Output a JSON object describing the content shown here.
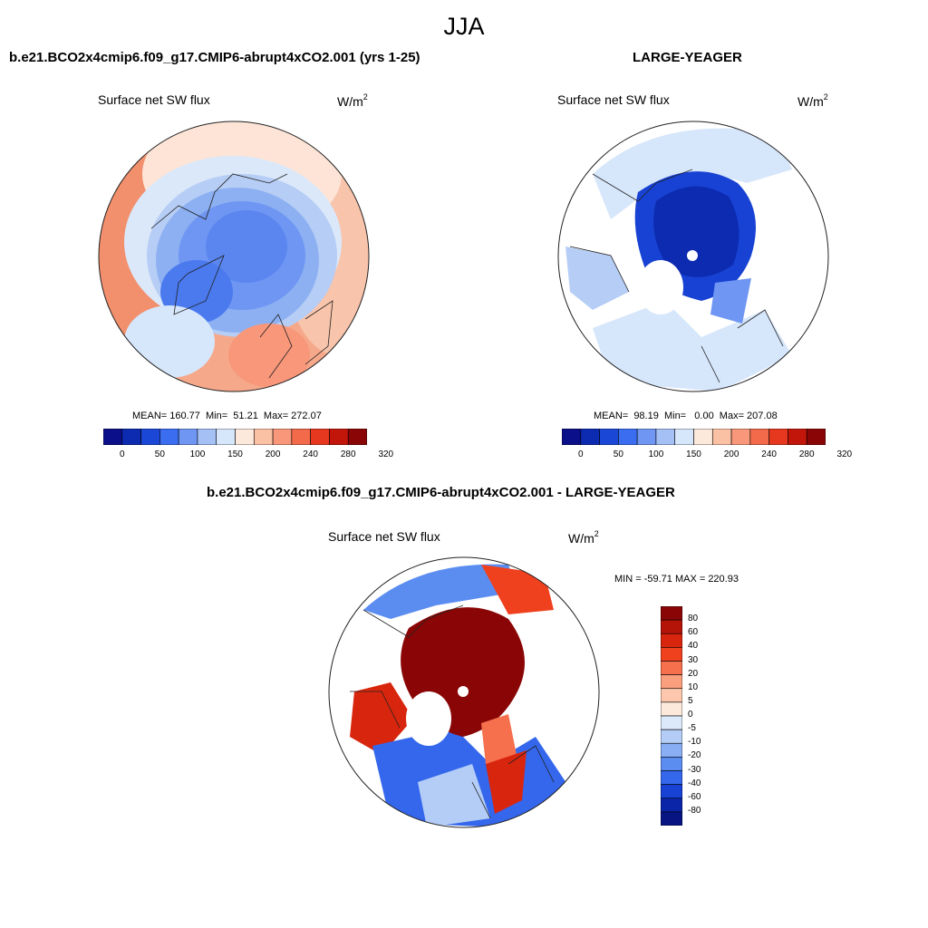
{
  "page_title": "JJA",
  "panels": [
    {
      "title": "b.e21.BCO2x4cmip6.f09_g17.CMIP6-abrupt4xCO2.001 (yrs 1-25)",
      "variable": "Surface net SW flux",
      "units": "W/m",
      "units_sup": "2",
      "stats": "MEAN= 160.77  Min=  51.21  Max= 272.07"
    },
    {
      "title": "LARGE-YEAGER",
      "variable": "Surface net SW flux",
      "units": "W/m",
      "units_sup": "2",
      "stats": "MEAN=  98.19  Min=   0.00  Max= 207.08"
    },
    {
      "title": "b.e21.BCO2x4cmip6.f09_g17.CMIP6-abrupt4xCO2.001 - LARGE-YEAGER",
      "variable": "Surface net SW flux",
      "units": "W/m",
      "units_sup": "2",
      "stats": "MIN = -59.71 MAX = 220.93"
    }
  ],
  "colorbar_top": {
    "colors": [
      "#0b0f8a",
      "#0c2bb0",
      "#1a47d6",
      "#3a6df0",
      "#6f96f2",
      "#a5c0f5",
      "#d6e6fb",
      "#fde8dc",
      "#fbc1a4",
      "#f8977a",
      "#f36a4a",
      "#e6381f",
      "#c2160a",
      "#8a0606"
    ],
    "tick_labels": [
      "0",
      "50",
      "100",
      "150",
      "200",
      "240",
      "280",
      "320"
    ]
  },
  "colorbar_diff": {
    "colors": [
      "#8a0606",
      "#b41308",
      "#d8250d",
      "#f0411f",
      "#f6704d",
      "#fa9f7e",
      "#fcc7ad",
      "#fde9dc",
      "#dce9fb",
      "#b4cdf6",
      "#89aef3",
      "#5b8df1",
      "#3467ec",
      "#1742d3",
      "#0a25a8",
      "#071482"
    ],
    "tick_labels": [
      "80",
      "60",
      "40",
      "30",
      "20",
      "10",
      "5",
      "0",
      "-5",
      "-10",
      "-20",
      "-30",
      "-40",
      "-60",
      "-80"
    ]
  }
}
